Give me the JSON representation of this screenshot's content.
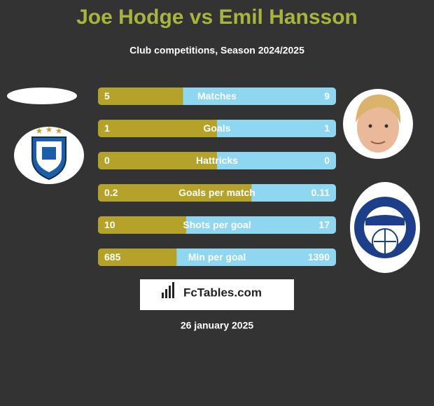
{
  "title": "Joe Hodge vs Emil Hansson",
  "subtitle": "Club competitions, Season 2024/2025",
  "rows": [
    {
      "label": "Matches",
      "left": 5,
      "right": 9
    },
    {
      "label": "Goals",
      "left": 1,
      "right": 1
    },
    {
      "label": "Hattricks",
      "left": 0,
      "right": 0
    },
    {
      "label": "Goals per match",
      "left": 0.2,
      "right": 0.11
    },
    {
      "label": "Shots per goal",
      "left": 10,
      "right": 17
    },
    {
      "label": "Min per goal",
      "left": 685,
      "right": 1390
    }
  ],
  "brand": "FcTables.com",
  "date": "26 january 2025"
}
